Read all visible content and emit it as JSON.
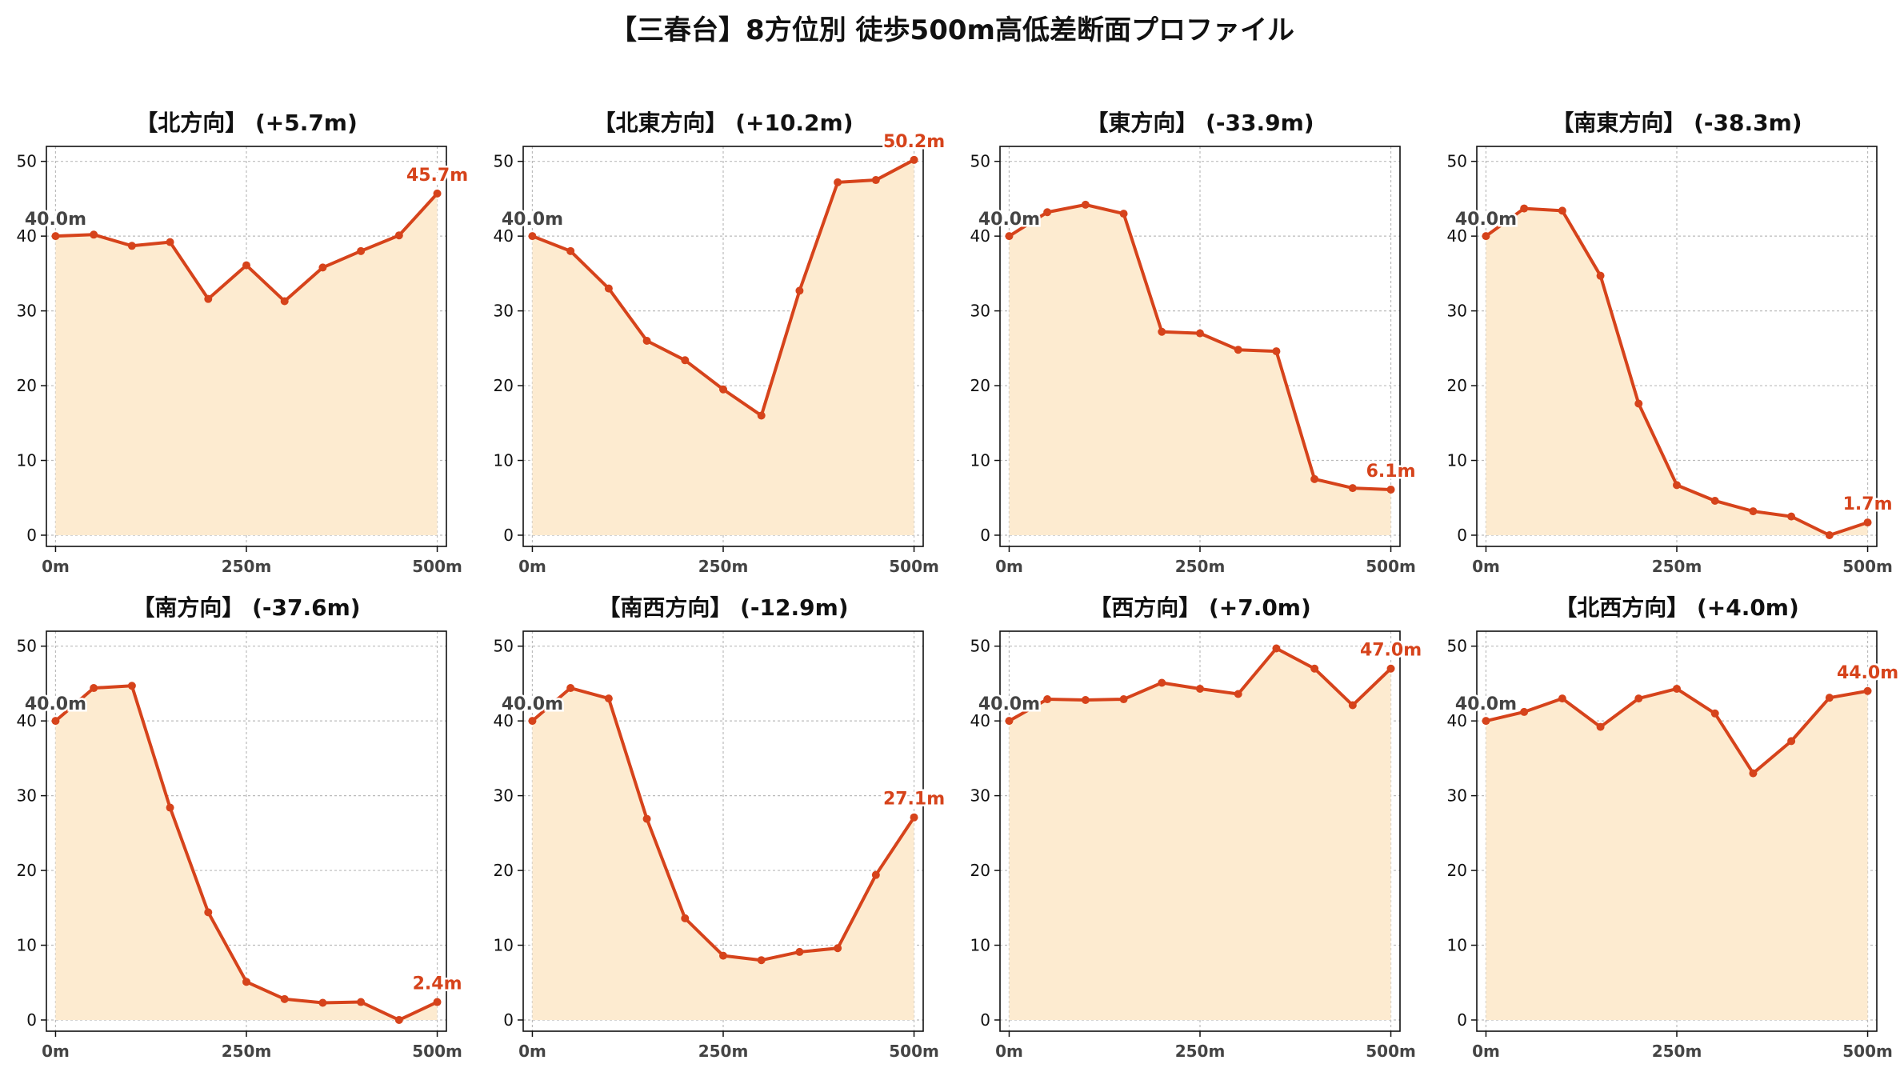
{
  "suptitle": "【三春台】8方位別 徒歩500m高低差断面プロファイル",
  "colors": {
    "line": "#d6431b",
    "fill": "#fdebd0",
    "grid": "#bbbbbb",
    "start_label": "#444444",
    "end_label": "#d6431b"
  },
  "chart_data": [
    {
      "type": "area",
      "title": "【北方向】 (+5.7m)",
      "x": [
        0,
        50,
        100,
        150,
        200,
        250,
        300,
        350,
        400,
        450,
        500
      ],
      "series": [
        {
          "values": [
            40.0,
            40.2,
            38.7,
            39.2,
            31.6,
            36.1,
            31.3,
            35.8,
            38.0,
            40.1,
            45.7
          ]
        }
      ],
      "xticks": [
        "0m",
        "250m",
        "500m"
      ],
      "yticks": [
        0,
        10,
        20,
        30,
        40,
        50
      ],
      "ylim": [
        -1.5,
        52
      ],
      "xlim": [
        -12,
        512
      ],
      "start_label": "40.0m",
      "end_label": "45.7m",
      "grid": true
    },
    {
      "type": "area",
      "title": "【北東方向】 (+10.2m)",
      "x": [
        0,
        50,
        100,
        150,
        200,
        250,
        300,
        350,
        400,
        450,
        500
      ],
      "series": [
        {
          "values": [
            40.0,
            38.0,
            33.0,
            26.0,
            23.4,
            19.5,
            16.0,
            32.7,
            47.2,
            47.5,
            50.2
          ]
        }
      ],
      "xticks": [
        "0m",
        "250m",
        "500m"
      ],
      "yticks": [
        0,
        10,
        20,
        30,
        40,
        50
      ],
      "ylim": [
        -1.5,
        52
      ],
      "xlim": [
        -12,
        512
      ],
      "start_label": "40.0m",
      "end_label": "50.2m",
      "grid": true
    },
    {
      "type": "area",
      "title": "【東方向】 (-33.9m)",
      "x": [
        0,
        50,
        100,
        150,
        200,
        250,
        300,
        350,
        400,
        450,
        500
      ],
      "series": [
        {
          "values": [
            40.0,
            43.2,
            44.2,
            43.0,
            27.2,
            27.0,
            24.8,
            24.6,
            7.5,
            6.3,
            6.1
          ]
        }
      ],
      "xticks": [
        "0m",
        "250m",
        "500m"
      ],
      "yticks": [
        0,
        10,
        20,
        30,
        40,
        50
      ],
      "ylim": [
        -1.5,
        52
      ],
      "xlim": [
        -12,
        512
      ],
      "start_label": "40.0m",
      "end_label": "6.1m",
      "grid": true
    },
    {
      "type": "area",
      "title": "【南東方向】 (-38.3m)",
      "x": [
        0,
        50,
        100,
        150,
        200,
        250,
        300,
        350,
        400,
        450,
        500
      ],
      "series": [
        {
          "values": [
            40.0,
            43.7,
            43.4,
            34.7,
            17.6,
            6.7,
            4.6,
            3.2,
            2.5,
            0.0,
            1.7
          ]
        }
      ],
      "xticks": [
        "0m",
        "250m",
        "500m"
      ],
      "yticks": [
        0,
        10,
        20,
        30,
        40,
        50
      ],
      "ylim": [
        -1.5,
        52
      ],
      "xlim": [
        -12,
        512
      ],
      "start_label": "40.0m",
      "end_label": "1.7m",
      "grid": true
    },
    {
      "type": "area",
      "title": "【南方向】 (-37.6m)",
      "x": [
        0,
        50,
        100,
        150,
        200,
        250,
        300,
        350,
        400,
        450,
        500
      ],
      "series": [
        {
          "values": [
            40.0,
            44.4,
            44.7,
            28.4,
            14.4,
            5.1,
            2.8,
            2.3,
            2.4,
            0.0,
            2.4
          ]
        }
      ],
      "xticks": [
        "0m",
        "250m",
        "500m"
      ],
      "yticks": [
        0,
        10,
        20,
        30,
        40,
        50
      ],
      "ylim": [
        -1.5,
        52
      ],
      "xlim": [
        -12,
        512
      ],
      "start_label": "40.0m",
      "end_label": "2.4m",
      "grid": true
    },
    {
      "type": "area",
      "title": "【南西方向】 (-12.9m)",
      "x": [
        0,
        50,
        100,
        150,
        200,
        250,
        300,
        350,
        400,
        450,
        500
      ],
      "series": [
        {
          "values": [
            40.0,
            44.4,
            43.0,
            26.9,
            13.6,
            8.6,
            8.0,
            9.1,
            9.6,
            19.4,
            27.1
          ]
        }
      ],
      "xticks": [
        "0m",
        "250m",
        "500m"
      ],
      "yticks": [
        0,
        10,
        20,
        30,
        40,
        50
      ],
      "ylim": [
        -1.5,
        52
      ],
      "xlim": [
        -12,
        512
      ],
      "start_label": "40.0m",
      "end_label": "27.1m",
      "grid": true
    },
    {
      "type": "area",
      "title": "【西方向】 (+7.0m)",
      "x": [
        0,
        50,
        100,
        150,
        200,
        250,
        300,
        350,
        400,
        450,
        500
      ],
      "series": [
        {
          "values": [
            40.0,
            42.9,
            42.8,
            42.9,
            45.1,
            44.3,
            43.6,
            49.7,
            47.0,
            42.1,
            47.0
          ]
        }
      ],
      "xticks": [
        "0m",
        "250m",
        "500m"
      ],
      "yticks": [
        0,
        10,
        20,
        30,
        40,
        50
      ],
      "ylim": [
        -1.5,
        52
      ],
      "xlim": [
        -12,
        512
      ],
      "start_label": "40.0m",
      "end_label": "47.0m",
      "grid": true
    },
    {
      "type": "area",
      "title": "【北西方向】 (+4.0m)",
      "x": [
        0,
        50,
        100,
        150,
        200,
        250,
        300,
        350,
        400,
        450,
        500
      ],
      "series": [
        {
          "values": [
            40.0,
            41.2,
            43.0,
            39.2,
            43.0,
            44.3,
            41.0,
            33.0,
            37.3,
            43.1,
            44.0
          ]
        }
      ],
      "xticks": [
        "0m",
        "250m",
        "500m"
      ],
      "yticks": [
        0,
        10,
        20,
        30,
        40,
        50
      ],
      "ylim": [
        -1.5,
        52
      ],
      "xlim": [
        -12,
        512
      ],
      "start_label": "40.0m",
      "end_label": "44.0m",
      "grid": true
    }
  ]
}
